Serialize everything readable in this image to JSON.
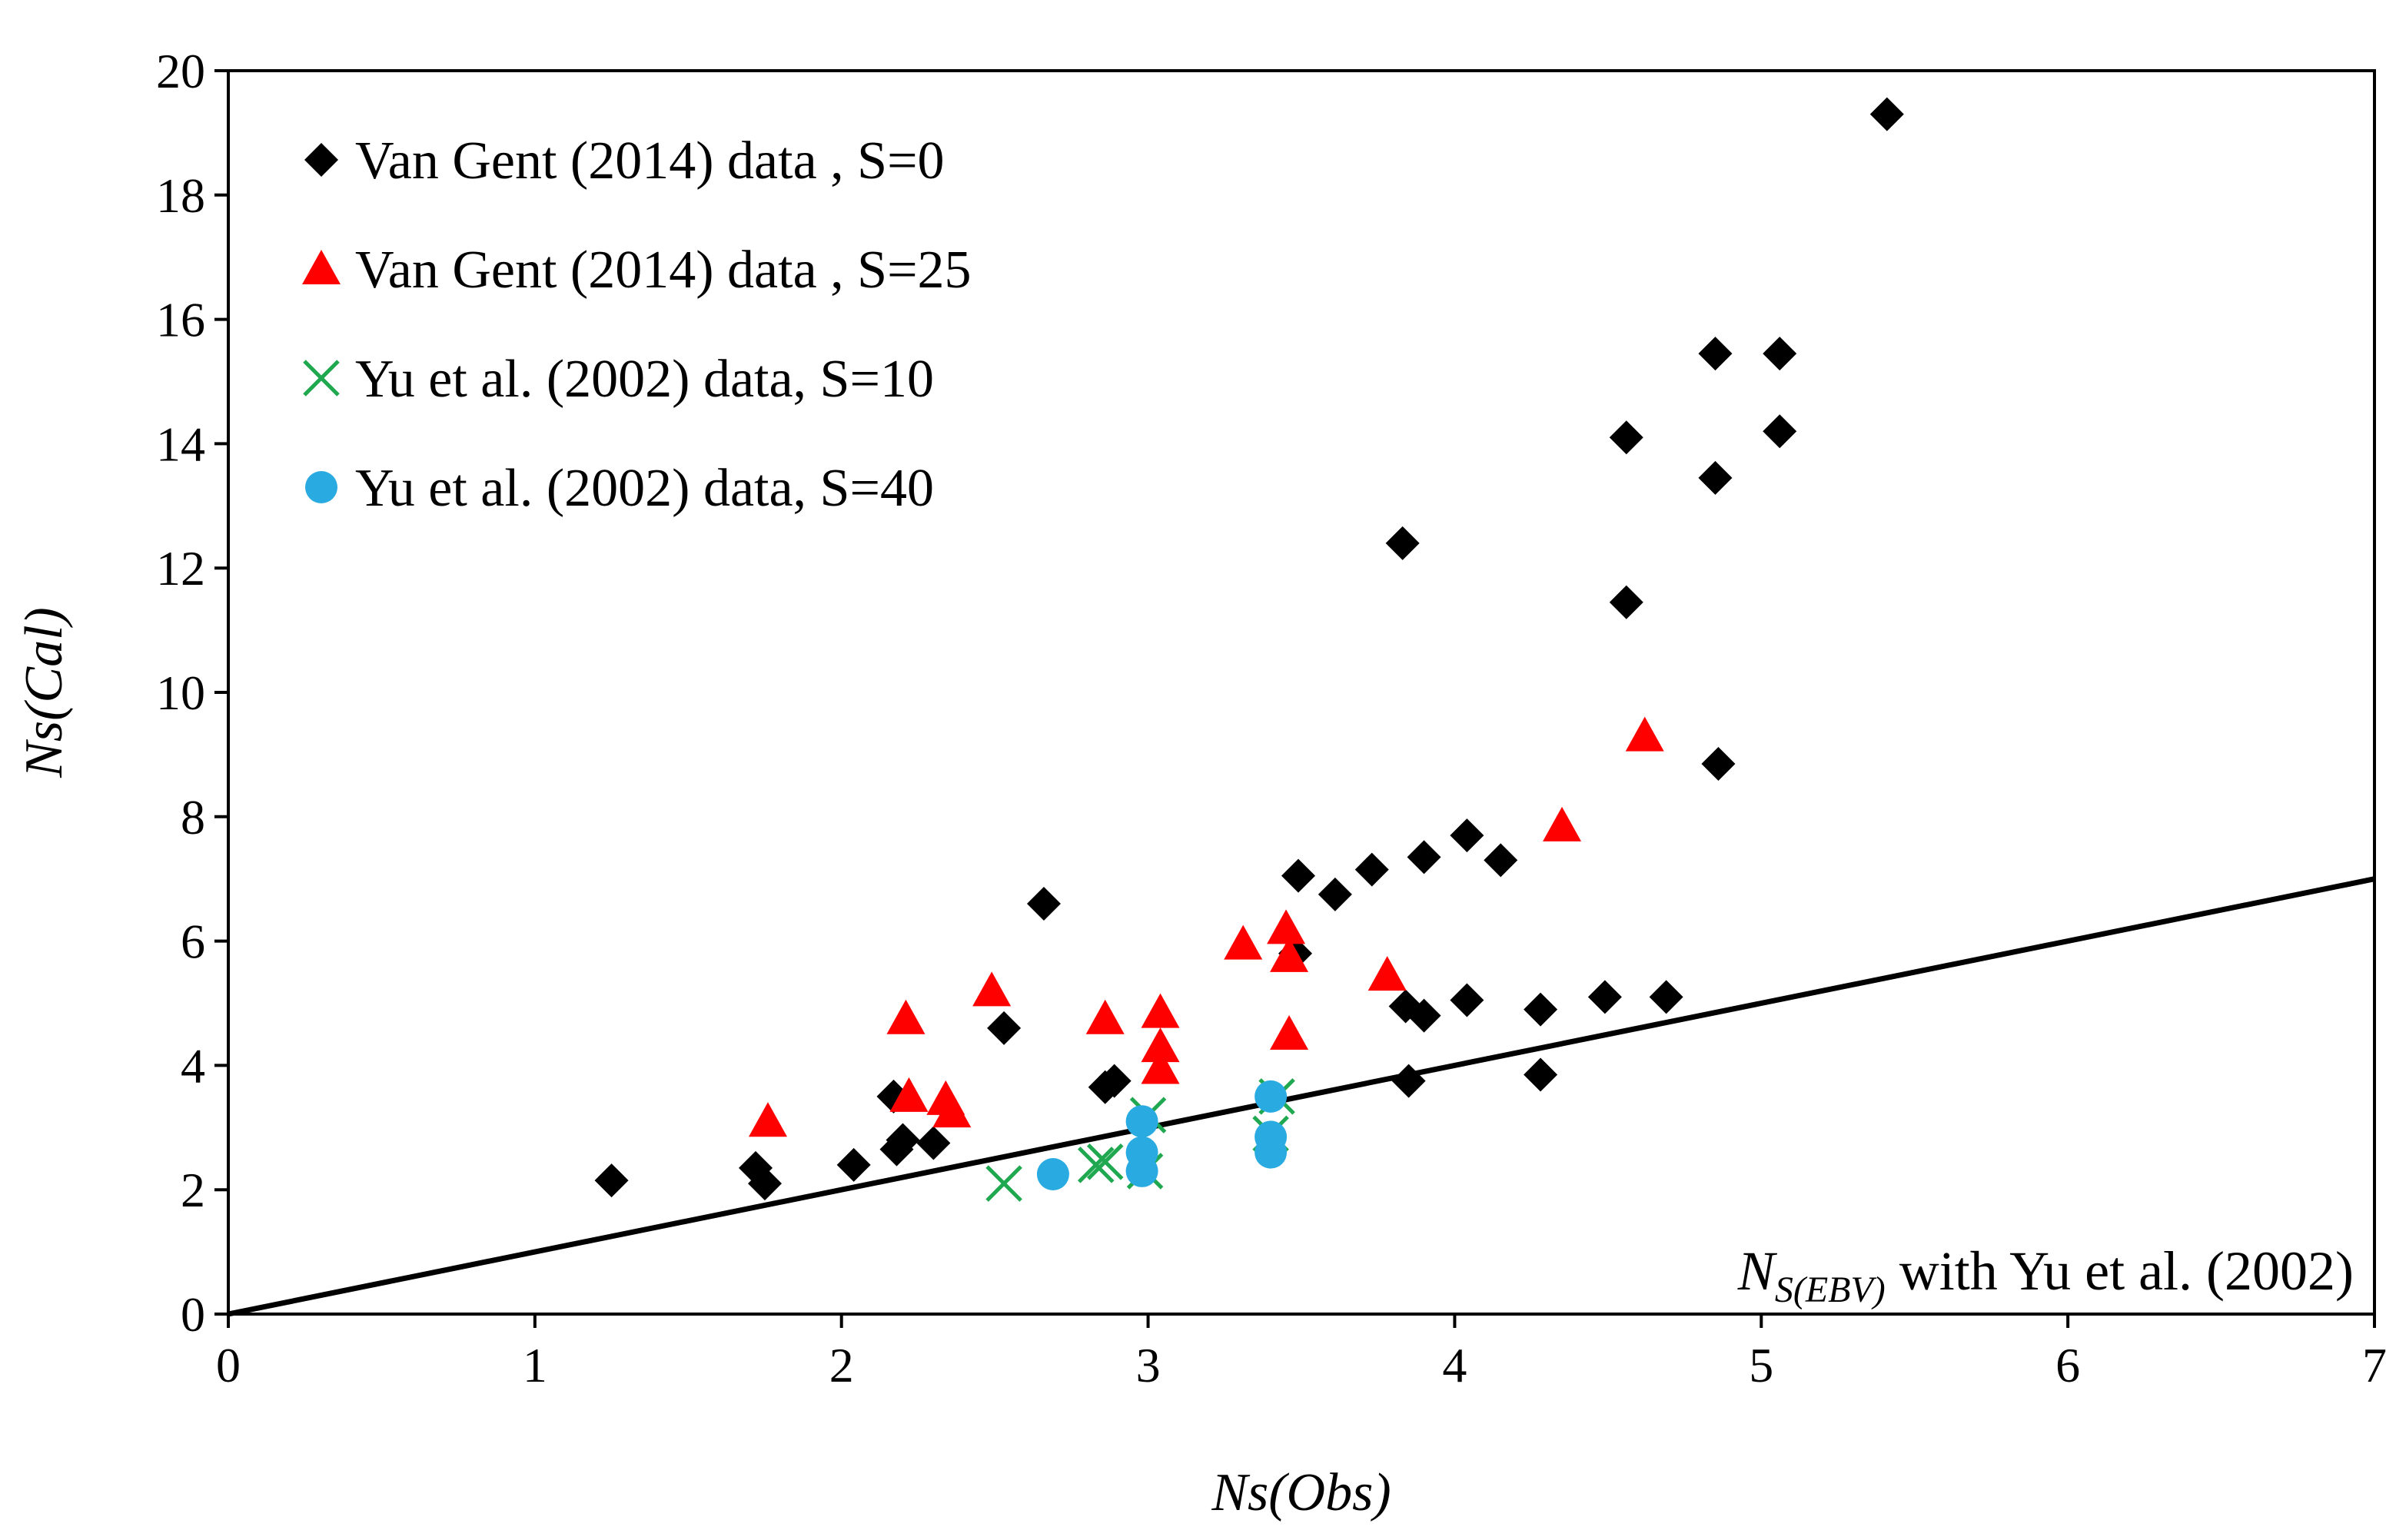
{
  "chart_data": {
    "type": "scatter",
    "title": "",
    "xlabel": "Ns(Obs)",
    "ylabel": "Ns(Cal)",
    "xlim": [
      0,
      7
    ],
    "ylim": [
      0,
      20
    ],
    "xticks": [
      "0",
      "1",
      "2",
      "3",
      "4",
      "5",
      "6",
      "7"
    ],
    "yticks": [
      "0",
      "2",
      "4",
      "6",
      "8",
      "10",
      "12",
      "14",
      "16",
      "18",
      "20"
    ],
    "grid": false,
    "legend_position": "top-left",
    "annotation": {
      "main": "N",
      "subscript": "S(EBV)",
      "rest": " with Yu et al. (2002)"
    },
    "reference_line": {
      "name": "y = x",
      "from": [
        0,
        0
      ],
      "to": [
        7,
        7
      ],
      "color": "#000000"
    },
    "series": [
      {
        "name": "Van Gent  (2014) data , S=0",
        "marker": "diamond",
        "color": "#000000",
        "points": [
          [
            1.25,
            2.15
          ],
          [
            1.72,
            2.35
          ],
          [
            1.75,
            2.1
          ],
          [
            2.04,
            2.4
          ],
          [
            2.17,
            3.5
          ],
          [
            2.18,
            2.65
          ],
          [
            2.2,
            2.8
          ],
          [
            2.3,
            2.75
          ],
          [
            2.53,
            4.6
          ],
          [
            2.66,
            6.6
          ],
          [
            2.86,
            3.65
          ],
          [
            2.89,
            3.75
          ],
          [
            3.48,
            5.8
          ],
          [
            3.49,
            7.05
          ],
          [
            3.61,
            6.75
          ],
          [
            3.73,
            7.15
          ],
          [
            3.83,
            12.4
          ],
          [
            3.84,
            4.95
          ],
          [
            3.85,
            3.75
          ],
          [
            3.9,
            4.8
          ],
          [
            3.9,
            7.35
          ],
          [
            4.04,
            5.05
          ],
          [
            4.04,
            7.7
          ],
          [
            4.15,
            7.3
          ],
          [
            4.28,
            4.9
          ],
          [
            4.28,
            3.85
          ],
          [
            4.49,
            5.1
          ],
          [
            4.56,
            14.1
          ],
          [
            4.56,
            11.45
          ],
          [
            4.69,
            5.1
          ],
          [
            4.85,
            15.45
          ],
          [
            4.85,
            13.45
          ],
          [
            4.86,
            8.85
          ],
          [
            5.06,
            15.45
          ],
          [
            5.06,
            14.2
          ],
          [
            5.41,
            19.3
          ]
        ]
      },
      {
        "name": "Van Gent  (2014) data , S=25",
        "marker": "triangle",
        "color": "#ff0000",
        "points": [
          [
            1.76,
            3.1
          ],
          [
            2.21,
            4.75
          ],
          [
            2.22,
            3.5
          ],
          [
            2.34,
            3.45
          ],
          [
            2.36,
            3.25
          ],
          [
            2.49,
            5.2
          ],
          [
            2.86,
            4.75
          ],
          [
            3.04,
            4.85
          ],
          [
            3.04,
            4.3
          ],
          [
            3.04,
            3.95
          ],
          [
            3.31,
            5.95
          ],
          [
            3.45,
            6.2
          ],
          [
            3.46,
            5.75
          ],
          [
            3.46,
            4.5
          ],
          [
            3.78,
            5.45
          ],
          [
            4.35,
            7.85
          ],
          [
            4.62,
            9.3
          ]
        ]
      },
      {
        "name": "Yu et al. (2002) data, S=10",
        "marker": "x",
        "color": "#1fa84f",
        "points": [
          [
            2.53,
            2.1
          ],
          [
            2.83,
            2.4
          ],
          [
            2.86,
            2.45
          ],
          [
            2.99,
            2.3
          ],
          [
            3.0,
            3.2
          ],
          [
            3.4,
            2.9
          ],
          [
            3.42,
            3.5
          ]
        ]
      },
      {
        "name": "Yu et al. (2002) data, S=40",
        "marker": "circle",
        "color": "#29abe2",
        "points": [
          [
            2.69,
            2.25
          ],
          [
            2.98,
            3.1
          ],
          [
            2.98,
            2.6
          ],
          [
            2.98,
            2.3
          ],
          [
            3.4,
            3.5
          ],
          [
            3.4,
            2.85
          ],
          [
            3.4,
            2.6
          ]
        ]
      }
    ]
  }
}
